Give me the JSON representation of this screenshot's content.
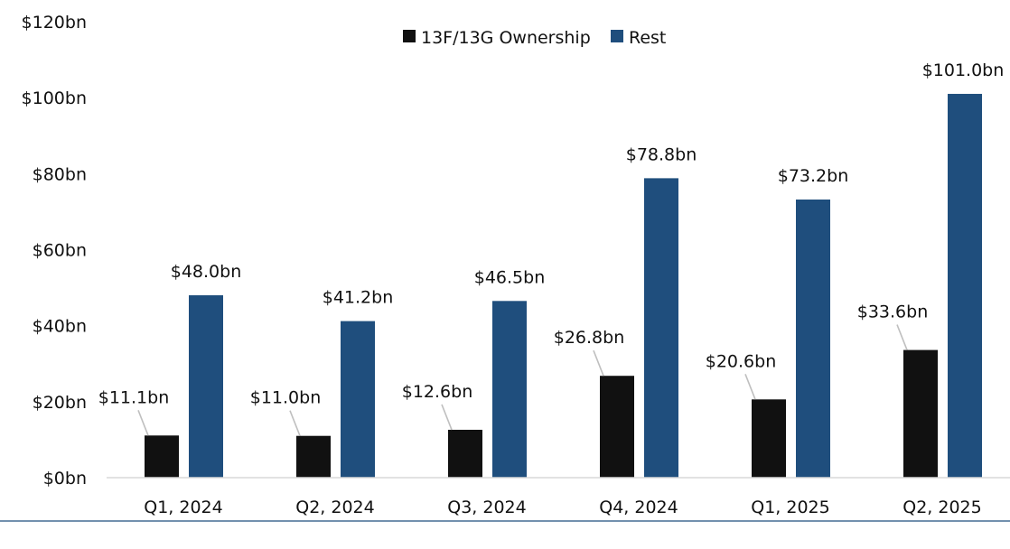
{
  "chart_data": {
    "type": "bar",
    "categories": [
      "Q1, 2024",
      "Q2, 2024",
      "Q3, 2024",
      "Q4, 2024",
      "Q1, 2025",
      "Q2, 2025"
    ],
    "series": [
      {
        "name": "13F/13G Ownership",
        "color": "#111111",
        "values": [
          11.1,
          11.0,
          12.6,
          26.8,
          20.6,
          33.6
        ],
        "labels": [
          "$11.1bn",
          "$11.0bn",
          "$12.6bn",
          "$26.8bn",
          "$20.6bn",
          "$33.6bn"
        ]
      },
      {
        "name": "Rest",
        "color": "#1f4e7d",
        "values": [
          48.0,
          41.2,
          46.5,
          78.8,
          73.2,
          101.0
        ],
        "labels": [
          "$48.0bn",
          "$41.2bn",
          "$46.5bn",
          "$78.8bn",
          "$73.2bn",
          "$101.0bn"
        ]
      }
    ],
    "ylim": [
      0,
      120
    ],
    "yticks": [
      0,
      20,
      40,
      60,
      80,
      100,
      120
    ],
    "ytick_labels": [
      "$0bn",
      "$20bn",
      "$40bn",
      "$60bn",
      "$80bn",
      "$100bn",
      "$120bn"
    ],
    "grid": false,
    "legend_position": "top-center"
  }
}
